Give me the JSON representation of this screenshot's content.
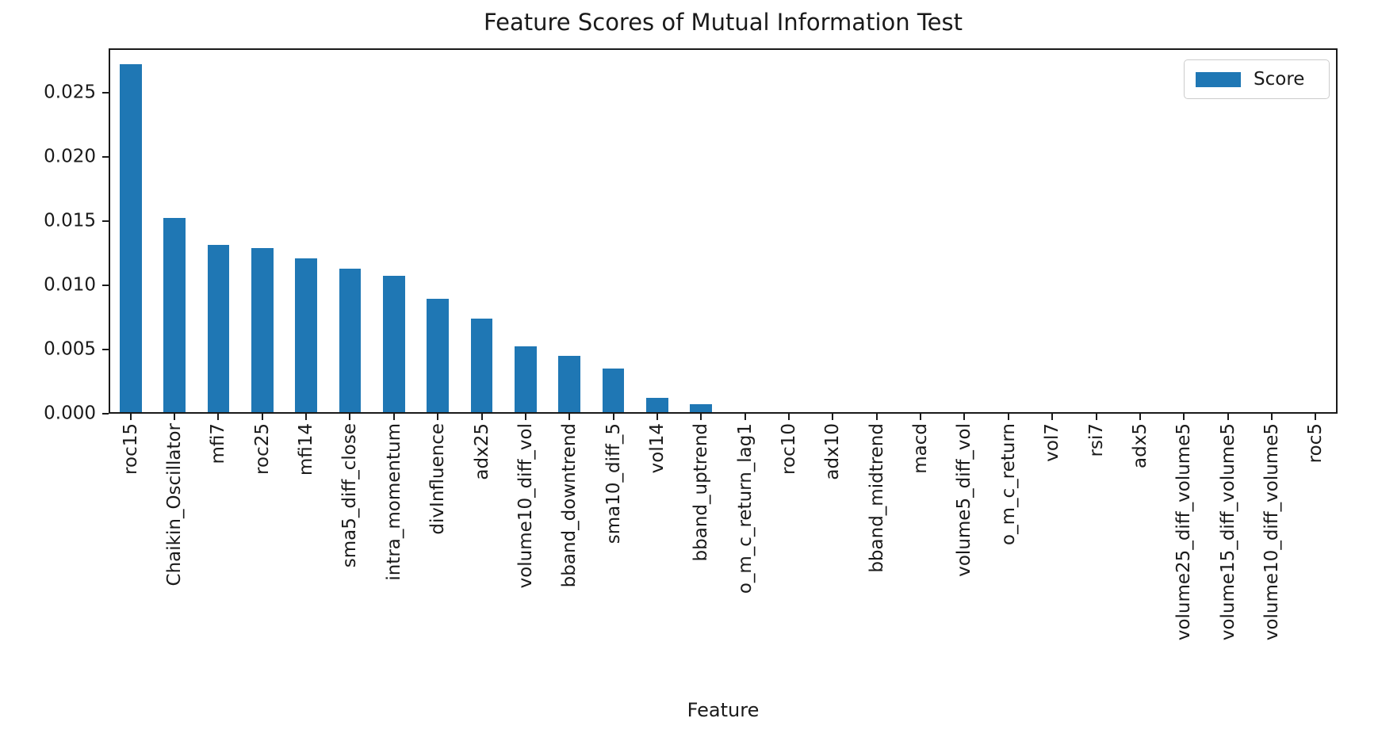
{
  "chart_data": {
    "type": "bar",
    "title": "Feature Scores of Mutual Information Test",
    "xlabel": "Feature",
    "ylabel": "",
    "legend": {
      "entries": [
        "Score"
      ],
      "position": "upper right"
    },
    "bar_color": "#1f77b4",
    "grid": false,
    "ylim": [
      0,
      0.0285
    ],
    "yticks": [
      0.0,
      0.005,
      0.01,
      0.015,
      0.02,
      0.025
    ],
    "ytick_labels": [
      "0.000",
      "0.005",
      "0.010",
      "0.015",
      "0.020",
      "0.025"
    ],
    "categories": [
      "roc15",
      "Chaikin_Oscillator",
      "mfi7",
      "roc25",
      "mfi14",
      "sma5_diff_close",
      "intra_momentum",
      "divInfluence",
      "adx25",
      "volume10_diff_vol",
      "bband_downtrend",
      "sma10_diff_5",
      "vol14",
      "bband_uptrend",
      "o_m_c_return_lag1",
      "roc10",
      "adx10",
      "bband_midtrend",
      "macd",
      "volume5_diff_vol",
      "o_m_c_return",
      "vol7",
      "rsi7",
      "adx5",
      "volume25_diff_volume5",
      "volume15_diff_volume5",
      "volume10_diff_volume5",
      "roc5"
    ],
    "values": [
      0.0271,
      0.0151,
      0.013,
      0.0128,
      0.012,
      0.0112,
      0.0106,
      0.0088,
      0.0073,
      0.0051,
      0.0044,
      0.0034,
      0.0011,
      0.0006,
      0.0,
      0.0,
      0.0,
      0.0,
      0.0,
      0.0,
      0.0,
      0.0,
      0.0,
      0.0,
      0.0,
      0.0,
      0.0,
      0.0
    ]
  }
}
